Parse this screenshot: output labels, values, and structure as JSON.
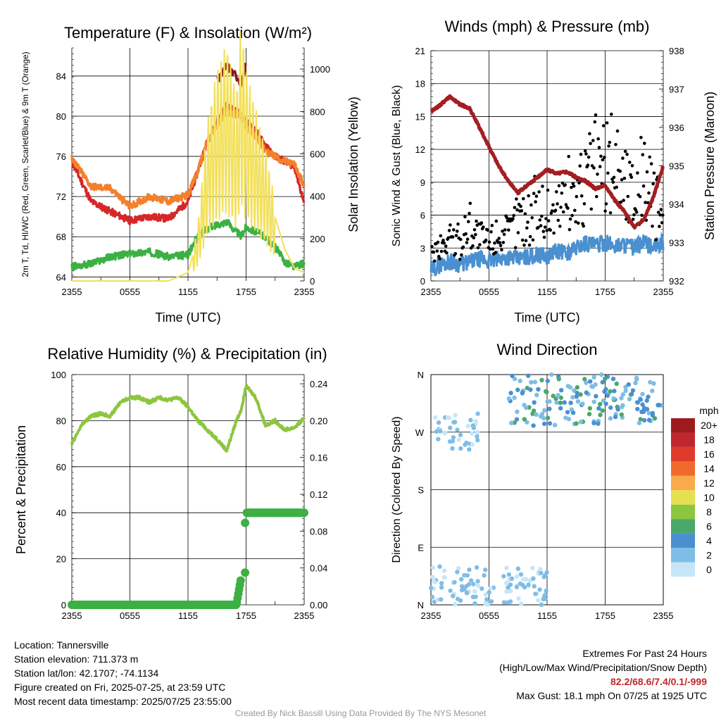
{
  "chart_data": [
    {
      "type": "line",
      "title": "Temperature (F) & Insolation (W/m²)",
      "xlabel": "Time (UTC)",
      "ylabel": "2m T, Td, HI/WC (Red, Green, Scarlet/Blue) & 9m T (Orange)",
      "ylabel_right": "Solar Insolation (Yellow)",
      "x_ticks": [
        "2355",
        "0555",
        "1155",
        "1755",
        "2355"
      ],
      "y_ticks": [
        "64",
        "68",
        "72",
        "76",
        "80",
        "84"
      ],
      "y_right_ticks": [
        "0",
        "200",
        "400",
        "600",
        "800",
        "1000"
      ],
      "ylim": [
        63.6,
        86.8
      ],
      "ylim_right": [
        0,
        1100
      ],
      "x_hours": [
        0,
        2,
        4,
        6,
        8,
        10,
        12,
        13,
        14,
        15,
        16,
        17,
        17.5,
        18,
        19,
        20,
        21,
        22,
        23,
        24
      ],
      "series": [
        {
          "color": "#d62728",
          "axis": "left",
          "values": [
            75.5,
            71.5,
            70.5,
            69.6,
            70.0,
            69.8,
            71.5,
            74.5,
            77.5,
            79.5,
            81.0,
            80.5,
            80.0,
            79.5,
            78.5,
            77.0,
            76.0,
            75.5,
            75.0,
            71.3
          ]
        },
        {
          "color": "#f4802c",
          "axis": "left",
          "values": [
            75.8,
            73.0,
            72.8,
            71.0,
            72.0,
            71.5,
            72.2,
            74.5,
            77.5,
            79.0,
            80.5,
            80.2,
            80.0,
            79.0,
            78.0,
            76.5,
            76.0,
            75.5,
            75.2,
            73.0
          ]
        },
        {
          "color": "#3cb043",
          "axis": "left",
          "values": [
            65.0,
            65.3,
            66.0,
            66.3,
            66.5,
            66.0,
            66.2,
            68.0,
            68.8,
            69.2,
            69.5,
            68.5,
            68.0,
            69.0,
            68.5,
            68.0,
            67.0,
            65.5,
            65.0,
            65.4
          ]
        },
        {
          "color": "#8b1a1a",
          "axis": "left",
          "values": [
            null,
            null,
            null,
            null,
            null,
            null,
            null,
            null,
            null,
            83.5,
            85.0,
            84.0,
            83.0,
            85.2,
            null,
            null,
            null,
            null,
            null,
            null
          ]
        },
        {
          "color": "#f2e05c",
          "axis": "right",
          "values": [
            0,
            0,
            0,
            0,
            0,
            0,
            40,
            200,
            600,
            800,
            900,
            700,
            1000,
            800,
            650,
            500,
            300,
            150,
            60,
            40
          ]
        }
      ]
    },
    {
      "type": "scatter",
      "title": "Winds (mph) & Pressure (mb)",
      "xlabel": "Time (UTC)",
      "ylabel": "Sonic Wind & Gust (Blue, Black)",
      "ylabel_right": "Station Pressure (Maroon)",
      "x_ticks": [
        "2355",
        "0555",
        "1155",
        "1755",
        "2355"
      ],
      "y_ticks": [
        "0",
        "3",
        "6",
        "9",
        "12",
        "15",
        "18",
        "21"
      ],
      "y_right_ticks": [
        "932",
        "933",
        "934",
        "935",
        "936",
        "937",
        "938"
      ],
      "ylim": [
        0,
        21
      ],
      "ylim_right": [
        932,
        938
      ],
      "x_hours": [
        0,
        1,
        2,
        3,
        4,
        5,
        6,
        7,
        8,
        9,
        10,
        11,
        12,
        13,
        14,
        15,
        16,
        17,
        18,
        19,
        20,
        21,
        22,
        23,
        24
      ],
      "series": [
        {
          "color": "#4a90d0",
          "values": [
            1.0,
            1.5,
            1.8,
            1.5,
            1.7,
            2.0,
            1.8,
            2.0,
            2.2,
            2.0,
            2.2,
            2.4,
            2.2,
            2.8,
            2.5,
            3.0,
            3.5,
            3.2,
            3.5,
            3.2,
            3.4,
            3.0,
            3.5,
            3.0,
            3.5
          ]
        },
        {
          "color": "#000000",
          "values": [
            2.5,
            3.0,
            4.0,
            3.5,
            5.5,
            4.0,
            3.5,
            4.5,
            4.0,
            6.0,
            5.5,
            7.0,
            6.0,
            6.5,
            8.0,
            7.5,
            9.0,
            11.0,
            10.0,
            11.5,
            9.0,
            8.0,
            10.0,
            7.0,
            6.0
          ]
        },
        {
          "color": "#a31e22",
          "values": [
            936.4,
            936.6,
            936.8,
            936.6,
            936.5,
            936.0,
            935.5,
            935.0,
            934.6,
            934.3,
            934.5,
            934.7,
            934.9,
            934.8,
            934.85,
            934.7,
            934.6,
            934.4,
            934.5,
            934.1,
            933.8,
            933.4,
            933.6,
            934.2,
            935.0
          ]
        }
      ]
    },
    {
      "type": "line",
      "title": "Relative Humidity (%) & Precipitation (in)",
      "xlabel": "",
      "ylabel": "Percent & Precipitation",
      "x_ticks": [
        "2355",
        "0555",
        "1155",
        "1755",
        "2355"
      ],
      "y_ticks": [
        "0",
        "20",
        "40",
        "60",
        "80",
        "100"
      ],
      "y_right_ticks": [
        "0.00",
        "0.04",
        "0.08",
        "0.12",
        "0.16",
        "0.20",
        "0.24"
      ],
      "ylim": [
        0,
        100
      ],
      "ylim_right": [
        0,
        0.25
      ],
      "x_hours": [
        0,
        1,
        2,
        3,
        4,
        5,
        6,
        7,
        8,
        9,
        10,
        11,
        12,
        13,
        14,
        15,
        16,
        17,
        17.5,
        18,
        19,
        20,
        21,
        22,
        23,
        24
      ],
      "series": [
        {
          "color": "#8cc63f",
          "values": [
            70,
            78,
            82,
            83,
            82,
            88,
            90,
            90,
            88,
            90,
            89,
            90,
            86,
            80,
            76,
            72,
            67,
            80,
            85,
            95,
            90,
            78,
            80,
            76,
            77,
            81
          ]
        },
        {
          "color": "#3cb043",
          "values": [
            0,
            0,
            0,
            0,
            0,
            0,
            0,
            0,
            0,
            0,
            0,
            0,
            0,
            0,
            0,
            0,
            0,
            0,
            0.03,
            0.1,
            0.1,
            0.1,
            0.1,
            0.1,
            0.1,
            0.1
          ]
        }
      ]
    },
    {
      "type": "scatter",
      "title": "Wind Direction",
      "ylabel": "Direction (Colored By Speed)",
      "x_ticks": [
        "2355",
        "0555",
        "1155",
        "1755",
        "2355"
      ],
      "y_ticks": [
        "N",
        "E",
        "S",
        "W",
        "N"
      ],
      "legend_title": "mph",
      "legend_labels": [
        "0",
        "2",
        "4",
        "6",
        "8",
        "10",
        "12",
        "14",
        "16",
        "18",
        "20+"
      ],
      "legend_colors": [
        "#c6e6f8",
        "#7fbde6",
        "#4a90d0",
        "#4aa86b",
        "#8cc63f",
        "#e5e04f",
        "#f9aa4a",
        "#f06a2b",
        "#e03a2b",
        "#c0272d",
        "#9e1a1e"
      ],
      "legend_position": "right",
      "clusters": [
        {
          "name": "north-easterly",
          "x_range": [
            0,
            12
          ],
          "dir_range": [
            0,
            60
          ],
          "speed_range": [
            0,
            3
          ]
        },
        {
          "name": "westerly",
          "x_range": [
            0,
            5
          ],
          "dir_range": [
            240,
            300
          ],
          "speed_range": [
            0,
            3
          ]
        },
        {
          "name": "north-westerly",
          "x_range": [
            8,
            24
          ],
          "dir_range": [
            280,
            360
          ],
          "speed_range": [
            1,
            6
          ]
        }
      ]
    }
  ],
  "station_info": [
    "Location: Tannersville",
    "Station elevation: 711.373 m",
    "Station lat/lon: 42.1707; -74.1134",
    "Figure created on Fri, 2025-07-25, at 23:59 UTC",
    "Most recent data timestamp: 2025/07/25 23:55:00"
  ],
  "extremes": {
    "title": "Extremes For Past 24 Hours",
    "subtitle": "(High/Low/Max Wind/Precipitation/Snow Depth)",
    "values": "82.2/68.6/7.4/0.1/-999",
    "max_gust": "Max Gust: 18.1 mph On 07/25 at 1925 UTC"
  },
  "credit": "Created By Nick Bassill Using Data Provided By The NYS Mesonet"
}
